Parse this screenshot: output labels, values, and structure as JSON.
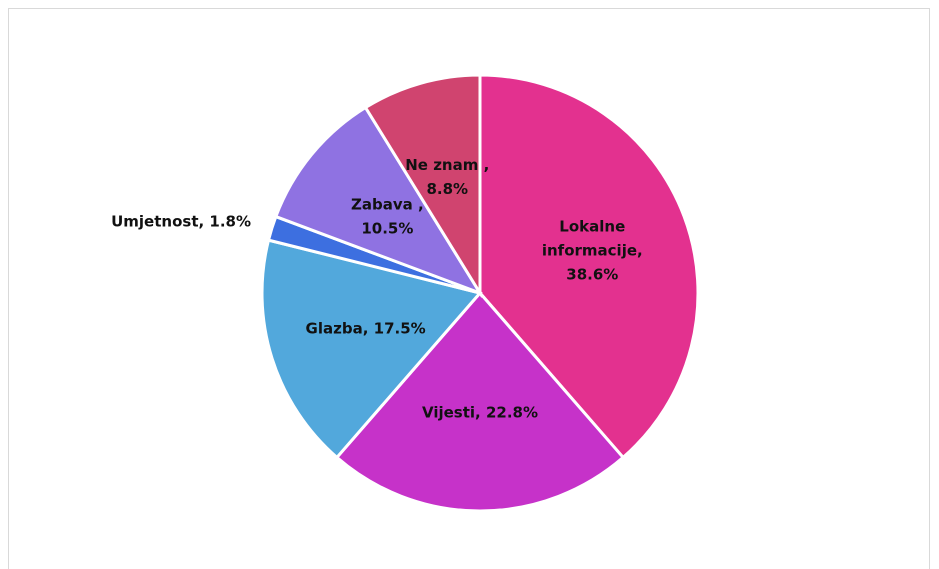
{
  "chart_data": {
    "type": "pie",
    "values": [
      38.6,
      22.8,
      17.5,
      1.8,
      10.5,
      8.8
    ],
    "value_labels": [
      [
        "Lokalne",
        "informacije,",
        "38.6%"
      ],
      [
        "Vijesti, 22.8%"
      ],
      [
        "Glazba, 17.5%"
      ],
      [
        "Umjetnost, 1.8%"
      ],
      [
        "Zabava ,",
        "10.5%"
      ],
      [
        "Ne znam ,",
        "8.8%"
      ]
    ],
    "colors": [
      "#e3318f",
      "#c632c9",
      "#52a8dc",
      "#3d6fe0",
      "#8f72e2",
      "#d0446f"
    ]
  }
}
